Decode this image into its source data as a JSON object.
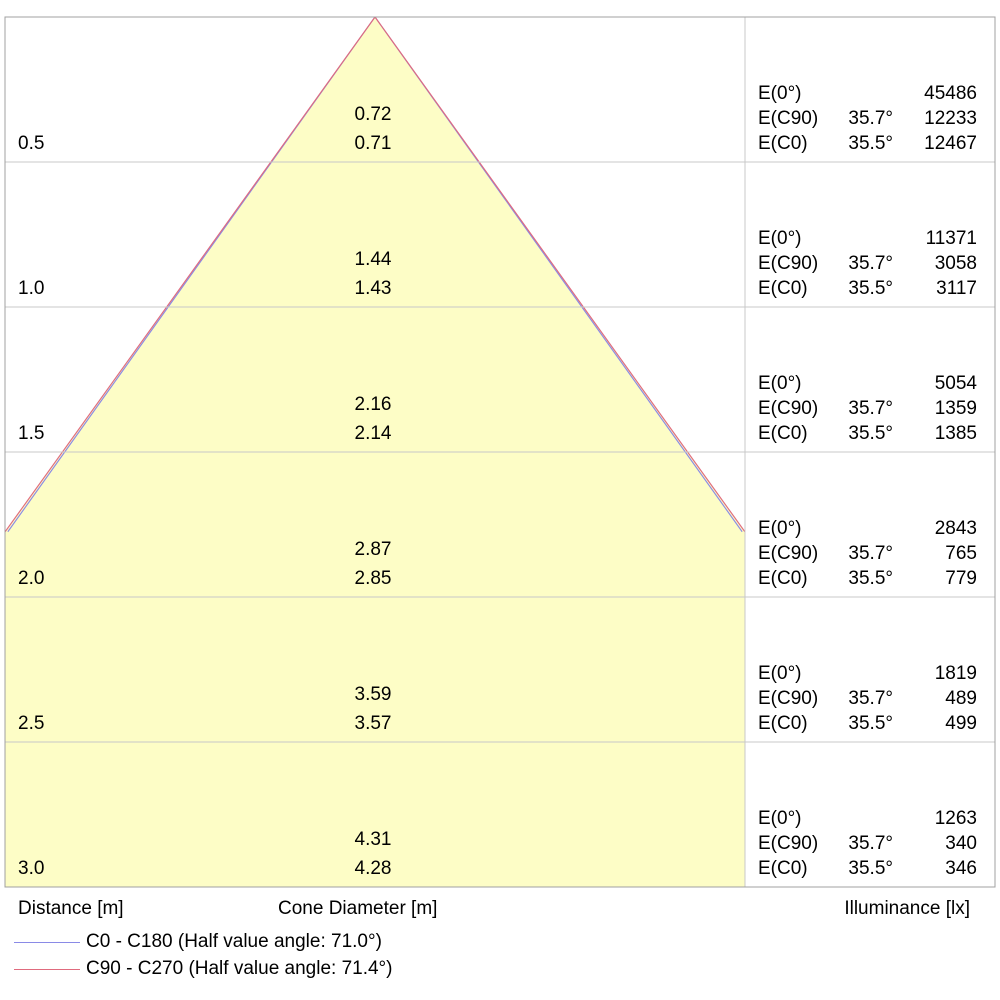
{
  "chart_data": {
    "type": "cone_diagram",
    "rows": [
      {
        "distance": "0.5",
        "diameter_c90": "0.72",
        "diameter_c0": "0.71",
        "illuminance": [
          {
            "label": "E(0°)",
            "angle": "",
            "value": "45486"
          },
          {
            "label": "E(C90)",
            "angle": "35.7°",
            "value": "12233"
          },
          {
            "label": "E(C0)",
            "angle": "35.5°",
            "value": "12467"
          }
        ]
      },
      {
        "distance": "1.0",
        "diameter_c90": "1.44",
        "diameter_c0": "1.43",
        "illuminance": [
          {
            "label": "E(0°)",
            "angle": "",
            "value": "11371"
          },
          {
            "label": "E(C90)",
            "angle": "35.7°",
            "value": "3058"
          },
          {
            "label": "E(C0)",
            "angle": "35.5°",
            "value": "3117"
          }
        ]
      },
      {
        "distance": "1.5",
        "diameter_c90": "2.16",
        "diameter_c0": "2.14",
        "illuminance": [
          {
            "label": "E(0°)",
            "angle": "",
            "value": "5054"
          },
          {
            "label": "E(C90)",
            "angle": "35.7°",
            "value": "1359"
          },
          {
            "label": "E(C0)",
            "angle": "35.5°",
            "value": "1385"
          }
        ]
      },
      {
        "distance": "2.0",
        "diameter_c90": "2.87",
        "diameter_c0": "2.85",
        "illuminance": [
          {
            "label": "E(0°)",
            "angle": "",
            "value": "2843"
          },
          {
            "label": "E(C90)",
            "angle": "35.7°",
            "value": "765"
          },
          {
            "label": "E(C0)",
            "angle": "35.5°",
            "value": "779"
          }
        ]
      },
      {
        "distance": "2.5",
        "diameter_c90": "3.59",
        "diameter_c0": "3.57",
        "illuminance": [
          {
            "label": "E(0°)",
            "angle": "",
            "value": "1819"
          },
          {
            "label": "E(C90)",
            "angle": "35.7°",
            "value": "489"
          },
          {
            "label": "E(C0)",
            "angle": "35.5°",
            "value": "499"
          }
        ]
      },
      {
        "distance": "3.0",
        "diameter_c90": "4.31",
        "diameter_c0": "4.28",
        "illuminance": [
          {
            "label": "E(0°)",
            "angle": "",
            "value": "1263"
          },
          {
            "label": "E(C90)",
            "angle": "35.7°",
            "value": "340"
          },
          {
            "label": "E(C0)",
            "angle": "35.5°",
            "value": "346"
          }
        ]
      }
    ],
    "half_value_angles": {
      "c0_c180": 71.0,
      "c90_c270": 71.4
    },
    "xlabel_left": "Distance [m]",
    "xlabel_center": "Cone Diameter [m]",
    "xlabel_right": "Illuminance [lx]",
    "legend": [
      {
        "label": "C0 - C180 (Half value angle: 71.0°)",
        "color": "#8a8ae6"
      },
      {
        "label": "C90 - C270 (Half value angle: 71.4°)",
        "color": "#e06b7e"
      }
    ],
    "colors": {
      "cone_fill": "#fdfdc6",
      "grid": "#c8c8c8",
      "border": "#a0a0a0"
    }
  }
}
